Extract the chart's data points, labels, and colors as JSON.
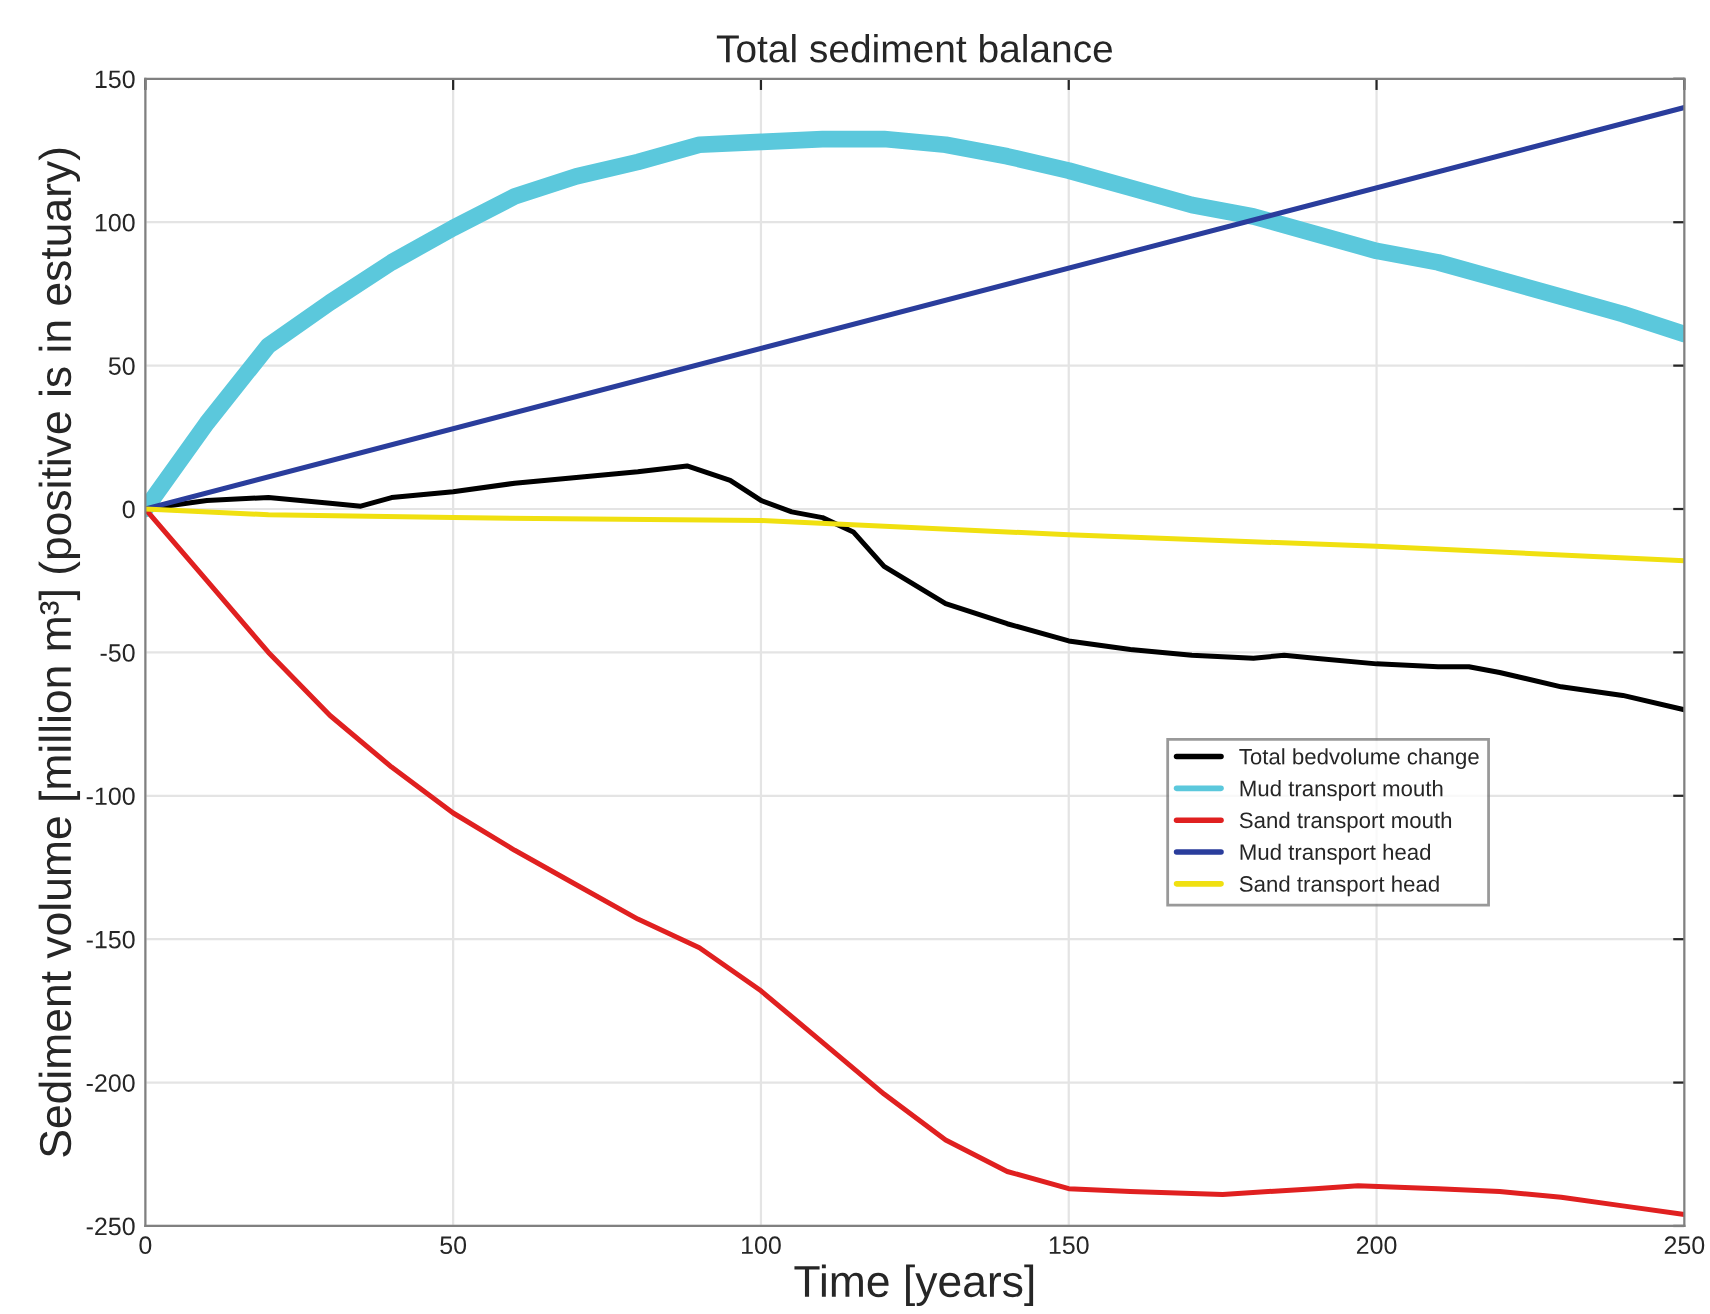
{
  "chart_data": {
    "type": "line",
    "title": "Total sediment balance",
    "xlabel": "Time [years]",
    "ylabel": "Sediment volume [million m³] (positive is in estuary)",
    "xlim": [
      0,
      250
    ],
    "xticks": [
      0,
      50,
      100,
      150,
      200,
      250
    ],
    "ylim": [
      -250,
      150
    ],
    "yticks": [
      -250,
      -200,
      -150,
      -100,
      -50,
      0,
      50,
      100,
      150
    ],
    "grid": true,
    "legend": "lower right",
    "marker": "none",
    "line_style": "solid",
    "series": [
      {
        "name": "Total bedvolume change",
        "color": "#000000",
        "x": [
          0,
          10,
          20,
          30,
          35,
          40,
          50,
          60,
          70,
          80,
          88,
          95,
          100,
          105,
          110,
          115,
          120,
          130,
          140,
          150,
          160,
          170,
          180,
          185,
          190,
          200,
          210,
          215,
          220,
          230,
          240,
          250
        ],
        "values": [
          0,
          3,
          4,
          2,
          1,
          4,
          6,
          9,
          11,
          13,
          15,
          10,
          3,
          -1,
          -3,
          -8,
          -20,
          -33,
          -40,
          -46,
          -49,
          -51,
          -52,
          -51,
          -52,
          -54,
          -55,
          -55,
          -57,
          -62,
          -65,
          -70
        ]
      },
      {
        "name": "Mud transport mouth",
        "color": "#5bc8dc",
        "x": [
          0,
          5,
          10,
          20,
          30,
          40,
          50,
          60,
          70,
          80,
          90,
          100,
          110,
          120,
          130,
          140,
          150,
          160,
          170,
          180,
          190,
          200,
          210,
          220,
          230,
          240,
          250
        ],
        "values": [
          0,
          15,
          30,
          57,
          72,
          86,
          98,
          109,
          116,
          121,
          127,
          128,
          129,
          129,
          127,
          123,
          118,
          112,
          106,
          102,
          96,
          90,
          86,
          80,
          74,
          68,
          61
        ]
      },
      {
        "name": "Sand transport mouth",
        "color": "#e02020",
        "x": [
          0,
          10,
          20,
          30,
          40,
          50,
          60,
          70,
          80,
          90,
          100,
          110,
          120,
          130,
          140,
          150,
          160,
          175,
          190,
          197,
          210,
          220,
          230,
          240,
          250
        ],
        "values": [
          0,
          -25,
          -50,
          -72,
          -90,
          -106,
          -119,
          -131,
          -143,
          -153,
          -168,
          -186,
          -204,
          -220,
          -231,
          -237,
          -238,
          -239,
          -237,
          -236,
          -237,
          -238,
          -240,
          -243,
          -246
        ]
      },
      {
        "name": "Mud transport head",
        "color": "#2a3d9c",
        "x": [
          0,
          250
        ],
        "values": [
          0,
          140
        ]
      },
      {
        "name": "Sand transport head",
        "color": "#f0e010",
        "x": [
          0,
          20,
          50,
          100,
          150,
          200,
          250
        ],
        "values": [
          0,
          -2,
          -3,
          -4,
          -9,
          -13,
          -18
        ]
      }
    ]
  }
}
